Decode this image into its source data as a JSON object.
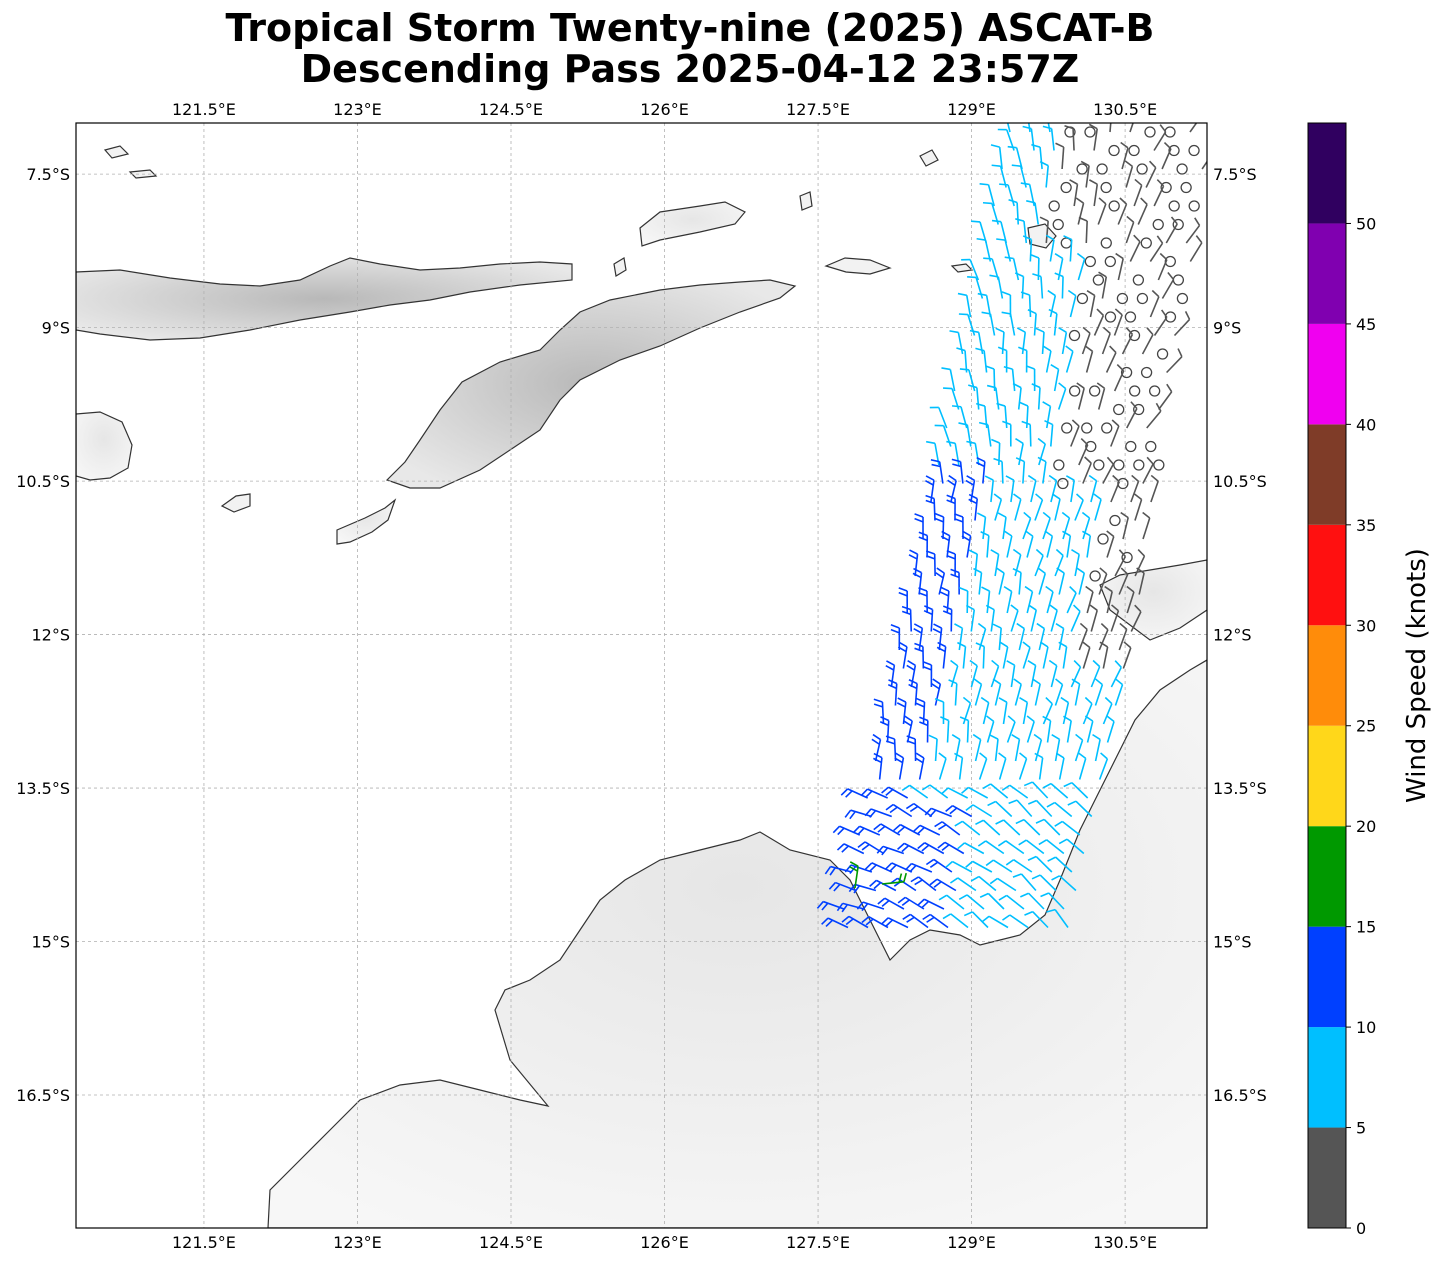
{
  "title": {
    "line1": "Tropical Storm Twenty-nine (2025) ASCAT-B",
    "line2": "Descending Pass 2025-04-12 23:57Z"
  },
  "map": {
    "lon_range": [
      120.25,
      131.3
    ],
    "lat_range": [
      -17.8,
      -7.0
    ],
    "lon_ticks": [
      {
        "value": 121.5,
        "label": "121.5°E"
      },
      {
        "value": 123.0,
        "label": "123°E"
      },
      {
        "value": 124.5,
        "label": "124.5°E"
      },
      {
        "value": 126.0,
        "label": "126°E"
      },
      {
        "value": 127.5,
        "label": "127.5°E"
      },
      {
        "value": 129.0,
        "label": "129°E"
      },
      {
        "value": 130.5,
        "label": "130.5°E"
      }
    ],
    "lat_ticks": [
      {
        "value": -7.5,
        "label": "7.5°S"
      },
      {
        "value": -9.0,
        "label": "9°S"
      },
      {
        "value": -10.5,
        "label": "10.5°S"
      },
      {
        "value": -12.0,
        "label": "12°S"
      },
      {
        "value": -13.5,
        "label": "13.5°S"
      },
      {
        "value": -15.0,
        "label": "15°S"
      },
      {
        "value": -16.5,
        "label": "16.5°S"
      }
    ],
    "grid": true,
    "colors": {
      "coastline": "#333333",
      "gridline": "#b0b0b0",
      "land_light": "#f2f2f2",
      "land_dark": "#bdbdbd"
    }
  },
  "colorbar": {
    "label": "Wind Speed (knots)",
    "ticks": [
      "0",
      "5",
      "10",
      "15",
      "20",
      "25",
      "30",
      "35",
      "40",
      "45",
      "50"
    ],
    "bins": [
      {
        "from": 0,
        "to": 5,
        "color": "#555555"
      },
      {
        "from": 5,
        "to": 10,
        "color": "#00bfff"
      },
      {
        "from": 10,
        "to": 15,
        "color": "#0040ff"
      },
      {
        "from": 15,
        "to": 20,
        "color": "#009900"
      },
      {
        "from": 20,
        "to": 25,
        "color": "#ffd71a"
      },
      {
        "from": 25,
        "to": 30,
        "color": "#ff8c0a"
      },
      {
        "from": 30,
        "to": 35,
        "color": "#ff1010"
      },
      {
        "from": 35,
        "to": 40,
        "color": "#7f3c28"
      },
      {
        "from": 40,
        "to": 45,
        "color": "#f000f0"
      },
      {
        "from": 45,
        "to": 50,
        "color": "#8000b0"
      },
      {
        "from": 50,
        "to": 55,
        "color": "#300060"
      }
    ]
  }
}
